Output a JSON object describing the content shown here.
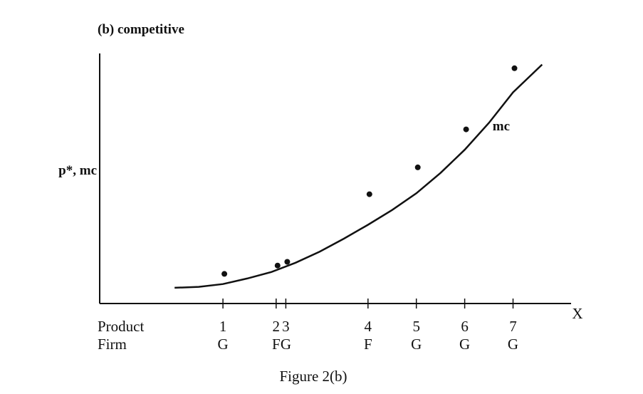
{
  "chart_data": {
    "type": "scatter",
    "title": "(b) competitive",
    "ylabel": "p*, mc",
    "xlabel": "X",
    "caption": "Figure 2(b)",
    "row_labels": {
      "product": "Product",
      "firm": "Firm"
    },
    "products": [
      {
        "product": "1",
        "firm": "G",
        "x": 1.0,
        "p": 1.1
      },
      {
        "product": "2",
        "firm": "F",
        "x": 2.1,
        "p": 1.55
      },
      {
        "product": "3",
        "firm": "G",
        "x": 2.3,
        "p": 1.75
      },
      {
        "product": "4",
        "firm": "F",
        "x": 4.0,
        "p": 5.4
      },
      {
        "product": "5",
        "firm": "G",
        "x": 5.0,
        "p": 6.85
      },
      {
        "product": "6",
        "firm": "G",
        "x": 6.0,
        "p": 8.9
      },
      {
        "product": "7",
        "firm": "G",
        "x": 7.0,
        "p": 12.2
      }
    ],
    "mc_curve": {
      "name": "mc",
      "x": [
        0.0,
        0.5,
        1.0,
        1.5,
        2.0,
        2.5,
        3.0,
        3.5,
        4.0,
        4.5,
        5.0,
        5.5,
        6.0,
        6.5,
        7.0,
        7.6
      ],
      "y": [
        0.35,
        0.4,
        0.55,
        0.85,
        1.2,
        1.7,
        2.3,
        3.0,
        3.75,
        4.55,
        5.45,
        6.55,
        7.8,
        9.25,
        10.9,
        12.4
      ]
    },
    "xlim": [
      -1.55,
      8.2
    ],
    "ylim": [
      -0.5,
      13.0
    ]
  }
}
